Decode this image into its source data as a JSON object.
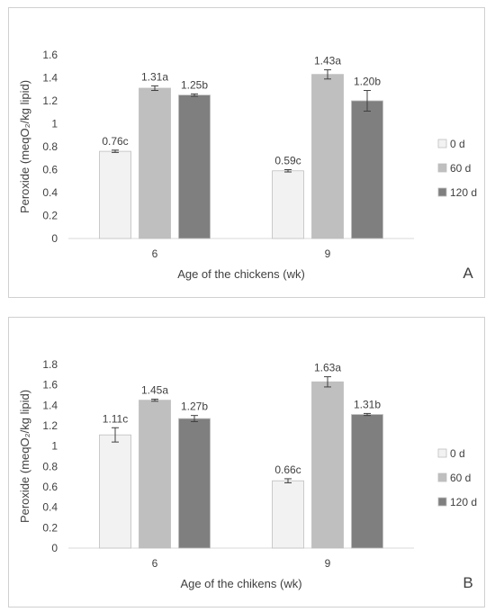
{
  "chart_data": [
    {
      "type": "bar",
      "panel_label": "A",
      "ylabel": "Peroxide (meqO₂/kg lipid)",
      "xlabel": "Age of the chickens (wk)",
      "ylim": [
        0,
        1.6
      ],
      "yticks": [
        "0",
        "0.2",
        "0.4",
        "0.6",
        "0.8",
        "1",
        "1.2",
        "1.4",
        "1.6"
      ],
      "categories": [
        "6",
        "9"
      ],
      "legend_position": "right",
      "grid": false,
      "series": [
        {
          "name": "0 d",
          "color": "#f2f2f2",
          "values": [
            0.76,
            0.59
          ],
          "errors": [
            0.01,
            0.01
          ],
          "labels": [
            "0.76c",
            "0.59c"
          ]
        },
        {
          "name": "60 d",
          "color": "#bfbfbf",
          "values": [
            1.31,
            1.43
          ],
          "errors": [
            0.02,
            0.04
          ],
          "labels": [
            "1.31a",
            "1.43a"
          ]
        },
        {
          "name": "120 d",
          "color": "#7f7f7f",
          "values": [
            1.25,
            1.2
          ],
          "errors": [
            0.01,
            0.09
          ],
          "labels": [
            "1.25b",
            "1.20b"
          ]
        }
      ]
    },
    {
      "type": "bar",
      "panel_label": "B",
      "ylabel": "Peroxide (meqO₂/kg lipid)",
      "xlabel": "Age of the chikens (wk)",
      "ylim": [
        0,
        1.8
      ],
      "yticks": [
        "0",
        "0.2",
        "0.4",
        "0.6",
        "0.8",
        "1",
        "1.2",
        "1.4",
        "1.6",
        "1.8"
      ],
      "categories": [
        "6",
        "9"
      ],
      "legend_position": "right",
      "grid": false,
      "series": [
        {
          "name": "0 d",
          "color": "#f2f2f2",
          "values": [
            1.11,
            0.66
          ],
          "errors": [
            0.07,
            0.02
          ],
          "labels": [
            "1.11c",
            "0.66c"
          ]
        },
        {
          "name": "60 d",
          "color": "#bfbfbf",
          "values": [
            1.45,
            1.63
          ],
          "errors": [
            0.01,
            0.05
          ],
          "labels": [
            "1.45a",
            "1.63a"
          ]
        },
        {
          "name": "120 d",
          "color": "#7f7f7f",
          "values": [
            1.27,
            1.31
          ],
          "errors": [
            0.03,
            0.01
          ],
          "labels": [
            "1.27b",
            "1.31b"
          ]
        }
      ]
    }
  ]
}
